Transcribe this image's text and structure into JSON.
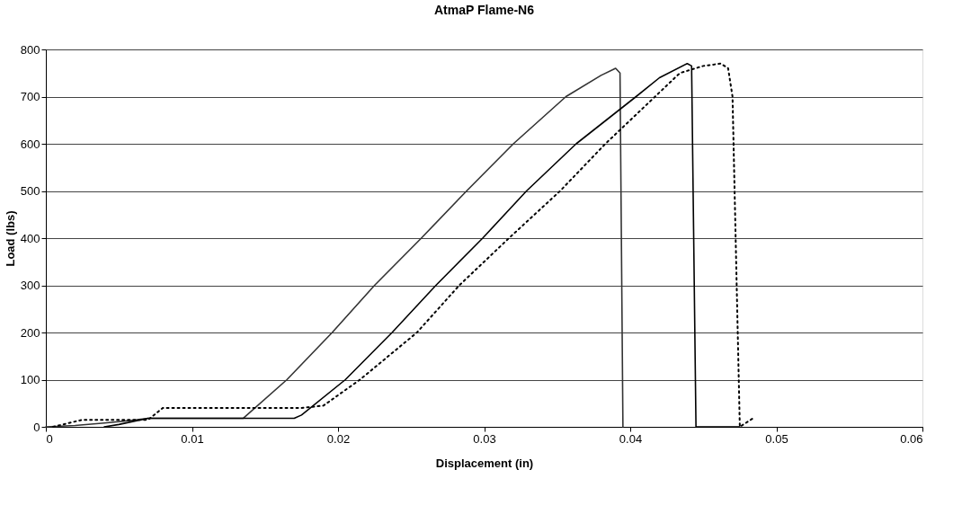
{
  "chart_data": {
    "type": "line",
    "title": "AtmaP Flame-N6",
    "xlabel": "Displacement (in)",
    "ylabel": "Load (lbs)",
    "xlim": [
      0,
      0.06
    ],
    "xticks": [
      0,
      0.01,
      0.02,
      0.03,
      0.04,
      0.05,
      0.06
    ],
    "ylim": [
      0,
      800
    ],
    "yticks": [
      0,
      100,
      200,
      300,
      400,
      500,
      600,
      700,
      800
    ],
    "grid": "y",
    "marker": "none",
    "series": [
      {
        "color": "#333333",
        "line_style": "solid",
        "x": [
          0,
          0.002,
          0.004,
          0.006,
          0.007,
          0.0135,
          0.0165,
          0.0196,
          0.0225,
          0.0257,
          0.0288,
          0.032,
          0.0356,
          0.038,
          0.039,
          0.0393,
          0.0395
        ],
        "values": [
          0,
          3,
          8,
          14,
          18,
          18,
          100,
          200,
          300,
          400,
          500,
          600,
          700,
          745,
          760,
          750,
          0
        ]
      },
      {
        "color": "#000000",
        "line_style": "solid",
        "x": [
          0.004,
          0.005,
          0.007,
          0.017,
          0.0175,
          0.0205,
          0.0237,
          0.0267,
          0.0299,
          0.0329,
          0.0363,
          0.0404,
          0.042,
          0.0439,
          0.0442,
          0.0445,
          0.0475
        ],
        "values": [
          0,
          5,
          18,
          18,
          25,
          100,
          200,
          300,
          400,
          500,
          600,
          700,
          740,
          770,
          765,
          0,
          0
        ]
      },
      {
        "color": "#000000",
        "line_style": "dotted",
        "x": [
          0.0005,
          0.0025,
          0.007,
          0.008,
          0.0175,
          0.019,
          0.0215,
          0.0254,
          0.0283,
          0.0317,
          0.0352,
          0.0383,
          0.0417,
          0.0434,
          0.045,
          0.0462,
          0.0467,
          0.047,
          0.0475,
          0.0485
        ],
        "values": [
          0,
          15,
          15,
          40,
          40,
          45,
          100,
          200,
          300,
          400,
          500,
          600,
          700,
          750,
          765,
          770,
          760,
          700,
          0,
          20
        ]
      }
    ]
  }
}
